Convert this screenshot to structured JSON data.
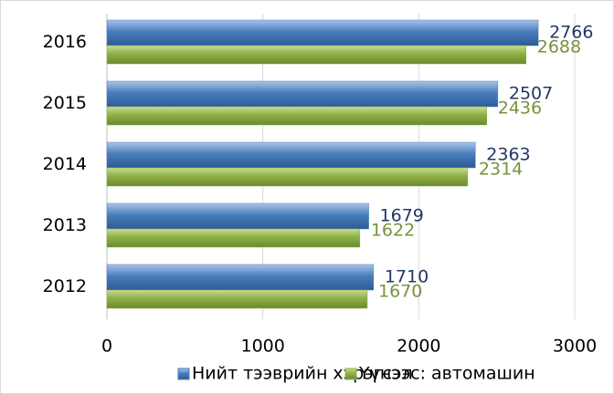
{
  "chart_data": {
    "type": "barh",
    "categories": [
      "2016",
      "2015",
      "2014",
      "2013",
      "2012"
    ],
    "series": [
      {
        "name": "Нийт тээврийн хэрэгсэл",
        "color": "#4a7ebb",
        "values": [
          2766,
          2507,
          2363,
          1679,
          1710
        ]
      },
      {
        "name": "Үүнээс: автомашин",
        "color": "#8fb046",
        "values": [
          2688,
          2436,
          2314,
          1622,
          1670
        ]
      }
    ],
    "label_colors": [
      "#1f3864",
      "#77933c"
    ],
    "xlim": [
      0,
      3000
    ],
    "xticks": [
      0,
      1000,
      2000,
      3000
    ],
    "grid": true,
    "legend": "bottom"
  }
}
